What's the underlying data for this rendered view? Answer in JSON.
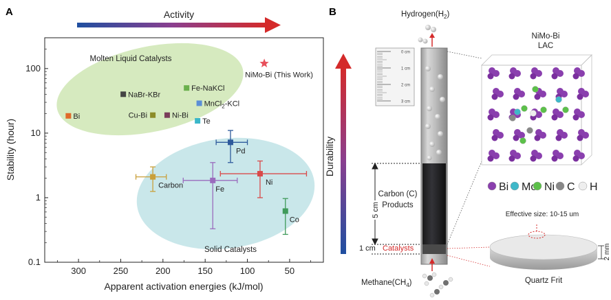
{
  "panel_a": {
    "label": "A",
    "activity_label": "Activity",
    "ylabel": "Stability (hour)",
    "xlabel": "Apparent activation energies (kJ/mol)",
    "xticks": [
      "300",
      "250",
      "200",
      "150",
      "100",
      "50"
    ],
    "yticks": [
      "100",
      "10",
      "1",
      "0.1"
    ],
    "molten_region_label": "Molten Liquid Catalysts",
    "solid_region_label": "Solid Catalysts",
    "colors": {
      "molten_region": "#cfe6b4",
      "solid_region": "#bfe3e6",
      "arrow_start": "#1f4fa0",
      "arrow_end": "#d42a2a"
    }
  },
  "chart_data": {
    "type": "scatter",
    "xlabel": "Apparent activation energies (kJ/mol)",
    "ylabel": "Stability (hour)",
    "x_reversed": true,
    "xlim": [
      340,
      10
    ],
    "ylim": [
      0.1,
      300
    ],
    "y_scale": "log",
    "points": [
      {
        "label": "NiMo-Bi (This Work)",
        "x": 80,
        "y": 120,
        "color": "#e8505b",
        "marker": "star"
      },
      {
        "label": "NaBr-KBr",
        "x": 247,
        "y": 40,
        "color": "#444444",
        "marker": "square"
      },
      {
        "label": "Fe-NaKCl",
        "x": 172,
        "y": 50,
        "color": "#6ab04c",
        "marker": "square"
      },
      {
        "label": "MnCl2-KCl",
        "x": 157,
        "y": 29,
        "color": "#5b8fd6",
        "marker": "square"
      },
      {
        "label": "Bi",
        "x": 312,
        "y": 18.5,
        "color": "#e06a2a",
        "marker": "square"
      },
      {
        "label": "Cu-Bi",
        "x": 212,
        "y": 19,
        "color": "#8c8c28",
        "marker": "square"
      },
      {
        "label": "Ni-Bi",
        "x": 195,
        "y": 19,
        "color": "#7a3d5a",
        "marker": "square"
      },
      {
        "label": "Te",
        "x": 159,
        "y": 15.5,
        "color": "#3ab7c9",
        "marker": "square"
      },
      {
        "label": "Pd",
        "x": 120,
        "y": 7.2,
        "color": "#2e5a9c",
        "marker": "square",
        "xerr": [
          137,
          100
        ],
        "yerr": [
          3.5,
          11
        ]
      },
      {
        "label": "Carbon",
        "x": 212,
        "y": 2.1,
        "color": "#c9a03a",
        "marker": "square",
        "xerr": [
          232,
          196
        ],
        "yerr": [
          1.25,
          3.0
        ]
      },
      {
        "label": "Fe",
        "x": 141,
        "y": 1.85,
        "color": "#9a6bbd",
        "marker": "square",
        "xerr": [
          176,
          112
        ],
        "yerr": [
          0.33,
          3.5
        ]
      },
      {
        "label": "Ni",
        "x": 85,
        "y": 2.35,
        "color": "#d94a4a",
        "marker": "square",
        "xerr": [
          132,
          30
        ],
        "yerr": [
          1.0,
          3.7
        ]
      },
      {
        "label": "Co",
        "x": 55,
        "y": 0.62,
        "color": "#3f9a5a",
        "marker": "square",
        "yerr": [
          0.27,
          0.97
        ]
      }
    ]
  },
  "panel_b": {
    "label": "B",
    "durability_label": "Durability",
    "hydrogen_label": "Hydrogen(H",
    "hydrogen_sub": "2",
    "methane_label": "Methane(CH",
    "methane_sub": "4",
    "ruler_ticks": [
      "0 cm",
      "1 cm",
      "2 cm",
      "3 cm"
    ],
    "carbon_label_line1": "Carbon (C)",
    "carbon_label_line2": "Products",
    "five_cm": "5 cm",
    "one_cm": "1 cm",
    "catalysts_label": "Catalysts",
    "lac_title_line1": "NiMo-Bi",
    "lac_title_line2": "LAC",
    "atoms": [
      "Bi",
      "Mo",
      "Ni",
      "C",
      "H"
    ],
    "effective_size": "Effective size: 10-15 um",
    "two_mm": "2 mm",
    "frit_label": "Quartz Frit",
    "colors": {
      "bi": "#8a3fae",
      "mo": "#3fb8c9",
      "ni": "#5cc04a",
      "c": "#888888",
      "h": "#eeeeee",
      "catalyst_text": "#d42a2a"
    }
  }
}
